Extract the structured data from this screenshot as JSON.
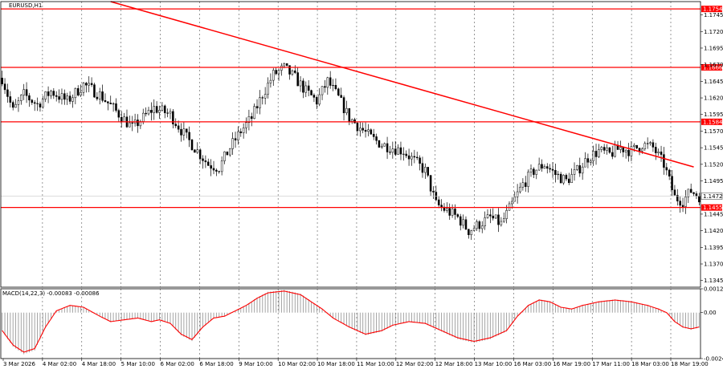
{
  "chart_data": [
    {
      "type": "candlestick",
      "symbol_label": "EURUSD,H1",
      "ylim": [
        1.1335,
        1.1765
      ],
      "y_ticks": [
        "1.1745",
        "1.1720",
        "1.1695",
        "1.1670",
        "1.1645",
        "1.1620",
        "1.1595",
        "1.1570",
        "1.1545",
        "1.1520",
        "1.1495",
        "1.1445",
        "1.1420",
        "1.1395",
        "1.1370",
        "1.1345"
      ],
      "x_ticks": [
        "3 Mar 2026",
        "4 Mar 02:00",
        "4 Mar 18:00",
        "5 Mar 10:00",
        "6 Mar 02:00",
        "6 Mar 18:00",
        "9 Mar 10:00",
        "10 Mar 02:00",
        "10 Mar 18:00",
        "11 Mar 10:00",
        "12 Mar 02:00",
        "12 Mar 18:00",
        "13 Mar 10:00",
        "16 Mar 03:00",
        "16 Mar 19:00",
        "17 Mar 11:00",
        "18 Mar 03:00",
        "18 Mar 19:00"
      ],
      "horizontal_levels": [
        {
          "value": 1.1754,
          "label": "1.1754",
          "color": "#ff0000"
        },
        {
          "value": 1.1666,
          "label": "1.1666",
          "color": "#ff0000"
        },
        {
          "value": 1.1584,
          "label": "1.1584",
          "color": "#ff0000"
        },
        {
          "value": 1.1455,
          "label": "1.1455",
          "color": "#ff0000"
        }
      ],
      "current_price": {
        "value": 1.1472,
        "label": "1.1472"
      },
      "trendline": {
        "start": {
          "x": "3 Mar 19:00",
          "y": 1.1765
        },
        "end": {
          "x": "19 Mar 05:00",
          "y": 1.1516
        },
        "color": "#ff0000"
      },
      "price_path": [
        [
          0,
          1.165
        ],
        [
          4,
          1.16
        ],
        [
          8,
          1.1625
        ],
        [
          13,
          1.161
        ],
        [
          18,
          1.163
        ],
        [
          24,
          1.1615
        ],
        [
          30,
          1.164
        ],
        [
          36,
          1.1625
        ],
        [
          42,
          1.16
        ],
        [
          48,
          1.1575
        ],
        [
          52,
          1.159
        ],
        [
          56,
          1.1605
        ],
        [
          62,
          1.1595
        ],
        [
          68,
          1.156
        ],
        [
          72,
          1.154
        ],
        [
          76,
          1.152
        ],
        [
          80,
          1.1515
        ],
        [
          84,
          1.1545
        ],
        [
          88,
          1.157
        ],
        [
          92,
          1.159
        ],
        [
          96,
          1.1625
        ],
        [
          100,
          1.1655
        ],
        [
          104,
          1.1665
        ],
        [
          108,
          1.165
        ],
        [
          112,
          1.163
        ],
        [
          116,
          1.1615
        ],
        [
          120,
          1.1645
        ],
        [
          124,
          1.162
        ],
        [
          128,
          1.159
        ],
        [
          132,
          1.1575
        ],
        [
          136,
          1.156
        ],
        [
          140,
          1.155
        ],
        [
          144,
          1.1545
        ],
        [
          148,
          1.154
        ],
        [
          152,
          1.1525
        ],
        [
          156,
          1.151
        ],
        [
          160,
          1.146
        ],
        [
          164,
          1.145
        ],
        [
          168,
          1.144
        ],
        [
          172,
          1.142
        ],
        [
          176,
          1.143
        ],
        [
          180,
          1.144
        ],
        [
          184,
          1.143
        ],
        [
          188,
          1.146
        ],
        [
          192,
          1.149
        ],
        [
          196,
          1.151
        ],
        [
          200,
          1.152
        ],
        [
          204,
          1.1505
        ],
        [
          208,
          1.1495
        ],
        [
          212,
          1.151
        ],
        [
          216,
          1.153
        ],
        [
          220,
          1.154
        ],
        [
          224,
          1.1535
        ],
        [
          228,
          1.1545
        ],
        [
          232,
          1.154
        ],
        [
          236,
          1.155
        ],
        [
          240,
          1.1545
        ],
        [
          244,
          1.152
        ],
        [
          246,
          1.1495
        ],
        [
          248,
          1.147
        ],
        [
          251,
          1.1465
        ],
        [
          254,
          1.148
        ],
        [
          257,
          1.1472
        ]
      ],
      "n_bars": 258
    },
    {
      "type": "histogram",
      "indicator_label": "MACD(14,22,3) -0.00083 -0.00086",
      "ylim": [
        -0.00243,
        0.00126
      ],
      "y_ticks": [
        "0.00126",
        "0.00",
        "-0.00243"
      ],
      "macd_path": [
        [
          0,
          -0.001
        ],
        [
          4,
          -0.0018
        ],
        [
          8,
          -0.0022
        ],
        [
          12,
          -0.002
        ],
        [
          16,
          -0.0008
        ],
        [
          20,
          0.0001
        ],
        [
          25,
          0.0004
        ],
        [
          30,
          0.0003
        ],
        [
          36,
          -0.0002
        ],
        [
          40,
          -0.0005
        ],
        [
          45,
          -0.0004
        ],
        [
          50,
          -0.0003
        ],
        [
          55,
          -0.0005
        ],
        [
          58,
          -0.0004
        ],
        [
          62,
          -0.0006
        ],
        [
          66,
          -0.0012
        ],
        [
          70,
          -0.0015
        ],
        [
          74,
          -0.0008
        ],
        [
          78,
          -0.0003
        ],
        [
          82,
          -0.0002
        ],
        [
          86,
          0.0001
        ],
        [
          90,
          0.0004
        ],
        [
          94,
          0.0008
        ],
        [
          98,
          0.0011
        ],
        [
          104,
          0.0012
        ],
        [
          110,
          0.001
        ],
        [
          114,
          0.0006
        ],
        [
          118,
          0.0002
        ],
        [
          122,
          -0.0003
        ],
        [
          128,
          -0.0008
        ],
        [
          134,
          -0.0012
        ],
        [
          140,
          -0.001
        ],
        [
          144,
          -0.0007
        ],
        [
          150,
          -0.0005
        ],
        [
          156,
          -0.0006
        ],
        [
          162,
          -0.001
        ],
        [
          168,
          -0.0014
        ],
        [
          174,
          -0.0016
        ],
        [
          180,
          -0.0014
        ],
        [
          186,
          -0.001
        ],
        [
          190,
          -0.0002
        ],
        [
          194,
          0.0004
        ],
        [
          198,
          0.0007
        ],
        [
          202,
          0.0006
        ],
        [
          206,
          0.0003
        ],
        [
          210,
          0.0002
        ],
        [
          214,
          0.0004
        ],
        [
          220,
          0.0006
        ],
        [
          226,
          0.0007
        ],
        [
          232,
          0.0006
        ],
        [
          238,
          0.0004
        ],
        [
          242,
          0.0002
        ],
        [
          245,
          0.0
        ],
        [
          248,
          -0.0005
        ],
        [
          251,
          -0.0008
        ],
        [
          254,
          -0.0009
        ],
        [
          257,
          -0.0008
        ]
      ],
      "signal_color": "#ff0000",
      "bar_color": "#9a9a9a"
    }
  ]
}
